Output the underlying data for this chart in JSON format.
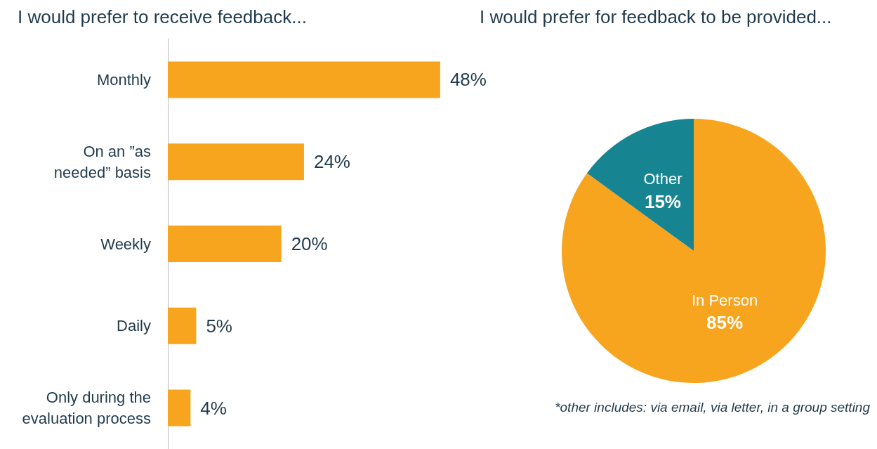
{
  "chart_data": [
    {
      "type": "bar",
      "orientation": "horizontal",
      "title": "I would prefer to receive feedback...",
      "categories": [
        "Monthly",
        "On an ”as\nneeded” basis",
        "Weekly",
        "Daily",
        "Only during the\nevaluation process"
      ],
      "values": [
        48,
        24,
        20,
        5,
        4
      ],
      "value_labels": [
        "48%",
        "24%",
        "20%",
        "5%",
        "4%"
      ],
      "color": "#f7a51f",
      "grid": false,
      "legend": false
    },
    {
      "type": "pie",
      "title": "I would prefer for feedback to be provided...",
      "categories": [
        "In Person",
        "Other"
      ],
      "values": [
        85,
        15
      ],
      "value_labels": [
        "85%",
        "15%"
      ],
      "colors": [
        "#f7a51f",
        "#178591"
      ],
      "legend": false,
      "annotations": [
        "*other includes: via email, via letter, in a group setting"
      ]
    }
  ]
}
